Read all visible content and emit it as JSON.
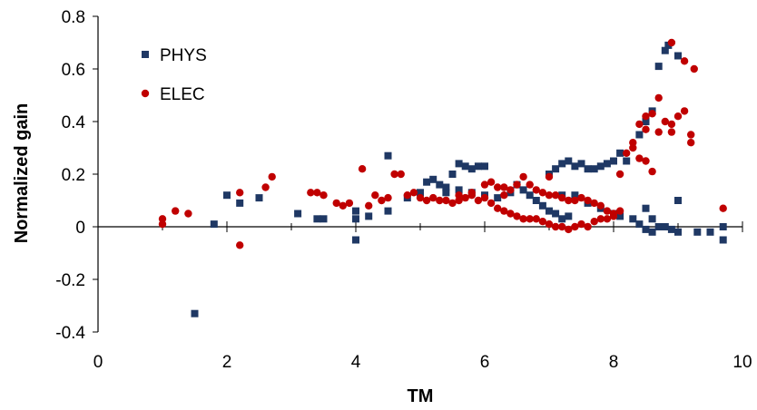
{
  "chart_data": {
    "type": "scatter",
    "xlabel": "TM",
    "ylabel": "Normalized gain",
    "xlim": [
      0,
      10
    ],
    "ylim": [
      -0.4,
      0.8
    ],
    "x_ticks": [
      "0",
      "2",
      "4",
      "6",
      "8",
      "10"
    ],
    "y_ticks": [
      "-0.4",
      "-0.2",
      "0",
      "0.2",
      "0.4",
      "0.6",
      "0.8"
    ],
    "grid": false,
    "legend_position": "top-left",
    "series": [
      {
        "name": "PHYS",
        "marker": "square",
        "color": "#1f3864",
        "points": [
          [
            1.5,
            -0.33
          ],
          [
            1.8,
            0.01
          ],
          [
            2.0,
            0.12
          ],
          [
            2.2,
            0.09
          ],
          [
            2.5,
            0.11
          ],
          [
            3.1,
            0.05
          ],
          [
            3.4,
            0.03
          ],
          [
            3.5,
            0.03
          ],
          [
            4.0,
            -0.05
          ],
          [
            4.0,
            0.03
          ],
          [
            4.0,
            0.06
          ],
          [
            4.2,
            0.04
          ],
          [
            4.5,
            0.27
          ],
          [
            4.5,
            0.06
          ],
          [
            4.8,
            0.11
          ],
          [
            5.0,
            0.13
          ],
          [
            5.1,
            0.17
          ],
          [
            5.2,
            0.18
          ],
          [
            5.3,
            0.16
          ],
          [
            5.4,
            0.15
          ],
          [
            5.5,
            0.2
          ],
          [
            5.6,
            0.24
          ],
          [
            5.7,
            0.23
          ],
          [
            5.8,
            0.22
          ],
          [
            5.9,
            0.23
          ],
          [
            6.0,
            0.23
          ],
          [
            5.4,
            0.13
          ],
          [
            5.6,
            0.14
          ],
          [
            5.8,
            0.13
          ],
          [
            6.0,
            0.12
          ],
          [
            6.2,
            0.11
          ],
          [
            6.4,
            0.13
          ],
          [
            6.5,
            0.16
          ],
          [
            6.6,
            0.14
          ],
          [
            6.7,
            0.12
          ],
          [
            6.8,
            0.1
          ],
          [
            6.9,
            0.08
          ],
          [
            7.0,
            0.06
          ],
          [
            7.1,
            0.05
          ],
          [
            7.2,
            0.03
          ],
          [
            7.3,
            0.04
          ],
          [
            7.0,
            0.2
          ],
          [
            7.1,
            0.22
          ],
          [
            7.2,
            0.24
          ],
          [
            7.3,
            0.25
          ],
          [
            7.4,
            0.23
          ],
          [
            7.5,
            0.24
          ],
          [
            7.6,
            0.22
          ],
          [
            7.7,
            0.22
          ],
          [
            7.8,
            0.23
          ],
          [
            7.9,
            0.24
          ],
          [
            8.0,
            0.25
          ],
          [
            8.1,
            0.28
          ],
          [
            8.2,
            0.25
          ],
          [
            7.2,
            0.12
          ],
          [
            7.4,
            0.12
          ],
          [
            7.6,
            0.09
          ],
          [
            7.8,
            0.07
          ],
          [
            8.0,
            0.05
          ],
          [
            8.1,
            0.04
          ],
          [
            8.3,
            0.03
          ],
          [
            8.4,
            0.01
          ],
          [
            8.5,
            -0.01
          ],
          [
            8.6,
            -0.02
          ],
          [
            8.7,
            0.0
          ],
          [
            8.4,
            0.35
          ],
          [
            8.5,
            0.4
          ],
          [
            8.6,
            0.44
          ],
          [
            8.7,
            0.61
          ],
          [
            8.8,
            0.67
          ],
          [
            8.85,
            0.69
          ],
          [
            9.0,
            0.65
          ],
          [
            9.0,
            0.1
          ],
          [
            8.9,
            -0.01
          ],
          [
            9.0,
            -0.02
          ],
          [
            9.3,
            -0.02
          ],
          [
            9.5,
            -0.02
          ],
          [
            9.7,
            0.0
          ],
          [
            9.7,
            -0.05
          ],
          [
            8.5,
            0.07
          ],
          [
            8.6,
            0.03
          ],
          [
            8.8,
            0.0
          ]
        ]
      },
      {
        "name": "ELEC",
        "marker": "circle",
        "color": "#c00000",
        "points": [
          [
            1.0,
            0.03
          ],
          [
            1.0,
            0.01
          ],
          [
            1.2,
            0.06
          ],
          [
            1.4,
            0.05
          ],
          [
            2.2,
            0.13
          ],
          [
            2.2,
            -0.07
          ],
          [
            2.6,
            0.15
          ],
          [
            2.7,
            0.19
          ],
          [
            3.3,
            0.13
          ],
          [
            3.4,
            0.13
          ],
          [
            3.5,
            0.12
          ],
          [
            3.7,
            0.09
          ],
          [
            3.8,
            0.08
          ],
          [
            3.9,
            0.09
          ],
          [
            4.1,
            0.22
          ],
          [
            4.2,
            0.08
          ],
          [
            4.3,
            0.12
          ],
          [
            4.4,
            0.1
          ],
          [
            4.5,
            0.11
          ],
          [
            4.6,
            0.2
          ],
          [
            4.7,
            0.2
          ],
          [
            4.8,
            0.12
          ],
          [
            4.9,
            0.13
          ],
          [
            5.0,
            0.11
          ],
          [
            5.1,
            0.1
          ],
          [
            5.2,
            0.11
          ],
          [
            5.3,
            0.1
          ],
          [
            5.4,
            0.1
          ],
          [
            5.5,
            0.09
          ],
          [
            5.6,
            0.1
          ],
          [
            5.7,
            0.11
          ],
          [
            5.8,
            0.12
          ],
          [
            5.9,
            0.1
          ],
          [
            6.0,
            0.11
          ],
          [
            6.1,
            0.09
          ],
          [
            6.2,
            0.07
          ],
          [
            6.3,
            0.06
          ],
          [
            6.4,
            0.05
          ],
          [
            6.5,
            0.04
          ],
          [
            6.6,
            0.03
          ],
          [
            6.7,
            0.03
          ],
          [
            6.8,
            0.03
          ],
          [
            6.9,
            0.02
          ],
          [
            7.0,
            0.01
          ],
          [
            7.1,
            0.0
          ],
          [
            7.2,
            0.0
          ],
          [
            7.3,
            -0.01
          ],
          [
            7.4,
            0.0
          ],
          [
            7.5,
            0.01
          ],
          [
            7.6,
            0.0
          ],
          [
            7.7,
            0.02
          ],
          [
            7.8,
            0.03
          ],
          [
            7.9,
            0.03
          ],
          [
            8.0,
            0.04
          ],
          [
            6.0,
            0.16
          ],
          [
            6.1,
            0.17
          ],
          [
            6.2,
            0.15
          ],
          [
            6.3,
            0.15
          ],
          [
            6.4,
            0.14
          ],
          [
            6.5,
            0.16
          ],
          [
            6.6,
            0.19
          ],
          [
            6.7,
            0.16
          ],
          [
            6.8,
            0.14
          ],
          [
            6.9,
            0.13
          ],
          [
            7.0,
            0.12
          ],
          [
            7.1,
            0.12
          ],
          [
            7.2,
            0.11
          ],
          [
            7.3,
            0.1
          ],
          [
            7.4,
            0.1
          ],
          [
            7.5,
            0.11
          ],
          [
            7.6,
            0.1
          ],
          [
            7.7,
            0.09
          ],
          [
            7.8,
            0.08
          ],
          [
            7.9,
            0.06
          ],
          [
            8.0,
            0.05
          ],
          [
            8.1,
            0.06
          ],
          [
            7.0,
            0.19
          ],
          [
            8.1,
            0.2
          ],
          [
            8.2,
            0.28
          ],
          [
            8.3,
            0.32
          ],
          [
            8.4,
            0.39
          ],
          [
            8.5,
            0.42
          ],
          [
            8.6,
            0.43
          ],
          [
            8.7,
            0.49
          ],
          [
            8.8,
            0.4
          ],
          [
            8.9,
            0.39
          ],
          [
            9.0,
            0.42
          ],
          [
            9.1,
            0.44
          ],
          [
            9.2,
            0.32
          ],
          [
            9.2,
            0.35
          ],
          [
            8.5,
            0.37
          ],
          [
            8.7,
            0.36
          ],
          [
            8.9,
            0.36
          ],
          [
            8.3,
            0.3
          ],
          [
            8.4,
            0.26
          ],
          [
            8.5,
            0.25
          ],
          [
            8.6,
            0.21
          ],
          [
            8.9,
            0.7
          ],
          [
            9.1,
            0.63
          ],
          [
            9.25,
            0.6
          ],
          [
            9.7,
            0.07
          ],
          [
            5.6,
            0.12
          ],
          [
            5.8,
            0.13
          ],
          [
            6.3,
            0.12
          ]
        ]
      }
    ]
  }
}
